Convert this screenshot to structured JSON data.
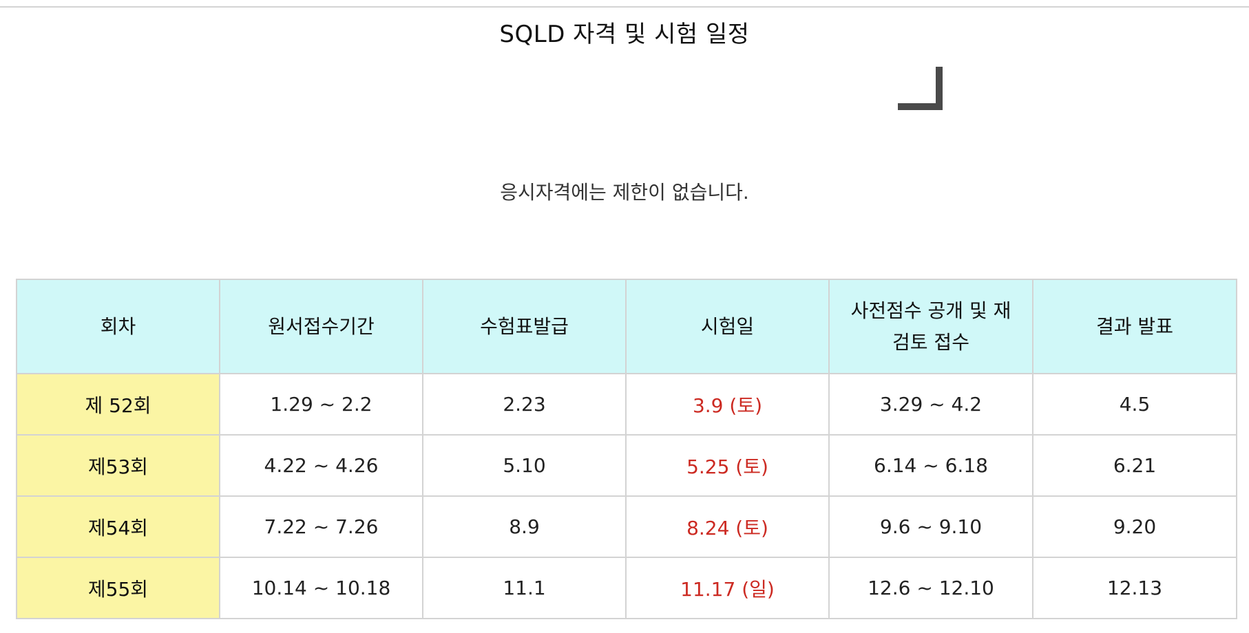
{
  "title": "SQLD 자격  및 시험 일정",
  "notice": "응시자격에는 제한이 없습니다.",
  "table": {
    "headers": [
      "회차",
      "원서접수기간",
      "수험표발급",
      "시험일",
      "사전점수 공개 및 재검토 접수",
      "결과 발표"
    ],
    "rows": [
      [
        "제 52회",
        "1.29 ~ 2.2",
        "2.23",
        "3.9 (토)",
        "3.29 ~ 4.2",
        "4.5"
      ],
      [
        "제53회",
        "4.22 ~ 4.26",
        "5.10",
        "5.25 (토)",
        "6.14 ~ 6.18",
        "6.21"
      ],
      [
        "제54회",
        "7.22 ~ 7.26",
        "8.9",
        "8.24 (토)",
        "9.6 ~ 9.10",
        "9.20"
      ],
      [
        "제55회",
        "10.14 ~ 10.18",
        "11.1",
        "11.17 (일)",
        "12.6 ~ 12.10",
        "12.13"
      ]
    ]
  },
  "colors": {
    "header_bg": "#d0f8f8",
    "round_bg": "#fbf5a4",
    "exam_date_text": "#cc2a22",
    "border": "#d3d3d3"
  }
}
